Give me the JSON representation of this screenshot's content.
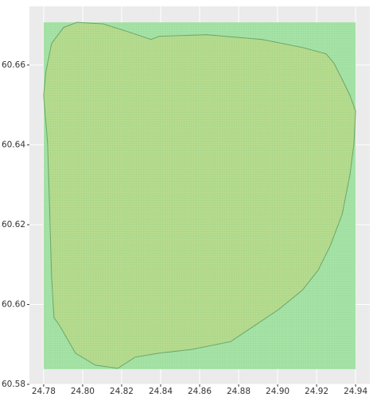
{
  "chart_data": {
    "type": "map",
    "xlim": [
      24.7727,
      24.9473
    ],
    "ylim": [
      60.58,
      60.6747
    ],
    "xticks": [
      24.78,
      {
        "value": 24.8,
        "label": "24.80"
      },
      24.82,
      24.84,
      24.86,
      24.88,
      {
        "value": 24.9,
        "label": "24.90"
      },
      24.92,
      24.94
    ],
    "yticks": [
      60.58,
      {
        "value": 60.6,
        "label": "60.60"
      },
      60.62,
      60.64,
      60.66
    ],
    "grid": true,
    "cells": {
      "color": "#a6e3a6",
      "xlim": [
        24.78,
        24.94
      ],
      "ylim": [
        60.5838,
        60.6707
      ]
    },
    "polygon": {
      "color": "#bada8a",
      "edge_color": "#6aa56a",
      "lon": [
        24.7971,
        24.8106,
        24.8229,
        24.8351,
        24.8392,
        24.8637,
        24.8922,
        24.9127,
        24.9249,
        24.929,
        24.9331,
        24.9371,
        24.94,
        24.9392,
        24.9371,
        24.9331,
        24.9269,
        24.9208,
        24.9127,
        24.9004,
        24.8882,
        24.8759,
        24.8555,
        24.8392,
        24.8269,
        24.818,
        24.8065,
        24.7963,
        24.7882,
        24.7853,
        24.7841,
        24.7829,
        24.782,
        24.78,
        24.7812,
        24.7841,
        24.7902
      ],
      "lat": [
        60.6707,
        60.6703,
        60.6684,
        60.6664,
        60.6672,
        60.6676,
        60.6664,
        60.6644,
        60.6628,
        60.6604,
        60.6564,
        60.6524,
        60.6485,
        60.6405,
        60.6325,
        60.6226,
        60.6146,
        60.6086,
        60.6036,
        60.5987,
        60.5947,
        60.5907,
        60.5887,
        60.5878,
        60.5868,
        60.584,
        60.5848,
        60.5878,
        60.5947,
        60.5967,
        60.6067,
        60.6266,
        60.6405,
        60.6524,
        60.6584,
        60.6654,
        60.6694
      ]
    }
  }
}
